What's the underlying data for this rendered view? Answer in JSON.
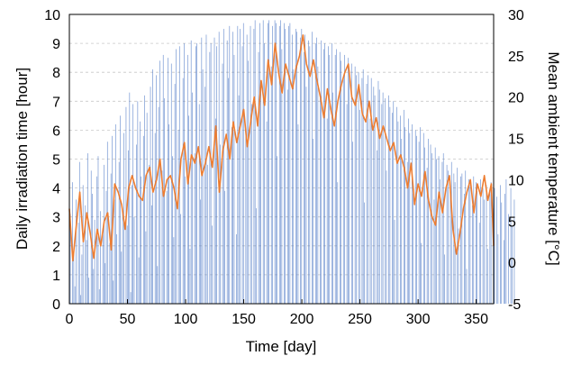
{
  "chart_data": {
    "type": "bar+line",
    "xlabel": "Time [day]",
    "ylabel_left": "Daily irradiation time [hour]",
    "ylabel_right": "Mean ambient temperature [°C]",
    "xlim": [
      0,
      365
    ],
    "ylim_left": [
      0,
      10
    ],
    "ylim_right": [
      -5,
      30
    ],
    "x_ticks": [
      0,
      50,
      100,
      150,
      200,
      250,
      300,
      350
    ],
    "y_left_ticks": [
      0,
      1,
      2,
      3,
      4,
      5,
      6,
      7,
      8,
      9,
      10
    ],
    "y_right_ticks": [
      -5,
      0,
      5,
      10,
      15,
      20,
      25,
      30
    ],
    "grid": "horizontal dashed",
    "series": [
      {
        "axis": "left",
        "kind": "bar",
        "color": "#4472c4",
        "values": [
          3.1,
          0.0,
          4.2,
          1.9,
          0.6,
          3.6,
          0.0,
          2.8,
          4.9,
          0.3,
          1.7,
          4.1,
          0.0,
          3.4,
          2.2,
          5.2,
          0.9,
          0.0,
          4.6,
          3.8,
          1.2,
          2.9,
          0.0,
          4.4,
          5.1,
          0.5,
          3.2,
          0.0,
          2.6,
          4.8,
          1.4,
          3.9,
          5.6,
          0.0,
          2.1,
          4.5,
          5.8,
          0.8,
          3.6,
          6.2,
          2.4,
          0.0,
          4.9,
          6.5,
          1.8,
          3.3,
          5.9,
          0.0,
          6.8,
          2.7,
          5.3,
          7.3,
          0.4,
          4.1,
          6.9,
          3.0,
          0.0,
          5.5,
          7.0,
          1.6,
          6.3,
          4.4,
          0.0,
          5.8,
          7.2,
          2.5,
          6.6,
          0.0,
          4.8,
          7.5,
          3.4,
          8.1,
          0.0,
          5.9,
          7.9,
          1.3,
          6.8,
          8.4,
          0.0,
          4.6,
          8.6,
          7.1,
          0.0,
          3.9,
          8.5,
          6.2,
          0.0,
          8.3,
          5.1,
          2.3,
          7.6,
          8.8,
          0.0,
          6.0,
          8.9,
          3.1,
          0.0,
          7.8,
          9.0,
          4.4,
          0.0,
          8.6,
          6.5,
          1.9,
          9.1,
          7.3,
          0.0,
          5.2,
          8.9,
          9.0,
          0.0,
          6.9,
          3.6,
          9.2,
          8.1,
          0.0,
          7.5,
          9.3,
          4.8,
          0.0,
          8.7,
          9.0,
          2.7,
          0.0,
          9.2,
          6.4,
          8.9,
          0.0,
          9.4,
          5.5,
          0.0,
          8.3,
          9.5,
          3.9,
          0.0,
          9.1,
          7.8,
          9.6,
          0.0,
          6.1,
          9.4,
          8.6,
          0.0,
          2.4,
          9.6,
          7.2,
          9.5,
          0.0,
          8.9,
          9.7,
          0.0,
          5.8,
          9.3,
          8.4,
          0.0,
          9.6,
          6.9,
          0.0,
          9.5,
          9.8,
          3.3,
          0.0,
          8.7,
          9.7,
          7.6,
          0.0,
          9.8,
          9.0,
          0.0,
          6.3,
          9.7,
          9.8,
          0.0,
          8.2,
          9.6,
          0.0,
          9.8,
          9.7,
          5.1,
          0.0,
          9.6,
          9.8,
          8.8,
          0.0,
          9.7,
          9.5,
          0.0,
          7.4,
          9.6,
          9.7,
          0.0,
          9.3,
          8.1,
          0.0,
          9.5,
          9.4,
          6.2,
          0.0,
          9.2,
          9.5,
          0.0,
          8.7,
          9.3,
          7.5,
          0.0,
          9.1,
          8.9,
          0.0,
          9.4,
          5.7,
          0.0,
          9.0,
          9.2,
          8.2,
          0.0,
          7.1,
          9.1,
          0.0,
          8.8,
          9.0,
          0.0,
          6.4,
          8.9,
          8.6,
          0.0,
          9.0,
          7.3,
          0.0,
          8.6,
          8.8,
          4.2,
          0.0,
          8.7,
          8.4,
          0.0,
          7.8,
          8.6,
          0.0,
          6.9,
          8.5,
          8.1,
          0.0,
          8.3,
          5.6,
          0.0,
          8.2,
          7.9,
          0.0,
          8.0,
          6.7,
          0.0,
          7.8,
          8.1,
          3.5,
          0.0,
          7.6,
          7.9,
          0.0,
          6.4,
          7.8,
          0.0,
          7.5,
          7.2,
          0.0,
          5.3,
          7.7,
          7.4,
          0.0,
          6.9,
          7.3,
          0.0,
          7.1,
          4.6,
          0.0,
          7.2,
          6.8,
          0.0,
          6.6,
          7.0,
          2.9,
          0.0,
          6.8,
          6.3,
          0.0,
          6.5,
          5.7,
          0.0,
          6.7,
          6.1,
          0.0,
          4.9,
          6.4,
          5.9,
          0.0,
          6.2,
          3.8,
          0.0,
          6.0,
          5.8,
          0.0,
          5.6,
          6.1,
          2.1,
          0.0,
          5.9,
          5.4,
          0.0,
          4.7,
          5.7,
          0.0,
          5.5,
          5.2,
          0.0,
          3.6,
          5.4,
          5.0,
          0.0,
          5.1,
          4.3,
          0.0,
          4.9,
          5.2,
          1.7,
          0.0,
          4.8,
          4.6,
          0.0,
          3.9,
          4.9,
          0.0,
          4.5,
          4.2,
          0.0,
          4.7,
          2.6,
          0.0,
          4.4,
          4.5,
          0.0,
          3.8,
          4.6,
          1.2,
          0.0,
          4.3,
          4.1,
          0.0,
          3.4,
          4.4,
          0.0,
          4.2,
          3.9,
          0.0,
          2.8,
          4.3,
          0.0,
          4.0,
          3.6,
          0.0,
          4.1,
          1.9,
          0.0,
          3.9,
          4.2,
          0.0,
          3.3,
          4.0,
          0.0,
          3.7,
          2.4,
          0.0,
          4.1,
          3.5,
          0.0,
          2.2,
          3.8,
          4.3,
          0.0,
          3.1,
          0.0,
          4.0,
          2.7,
          0.0,
          3.6,
          0.0
        ]
      },
      {
        "axis": "right",
        "kind": "line",
        "color": "#ed7d31",
        "x": [
          0,
          3,
          6,
          9,
          12,
          15,
          18,
          21,
          24,
          27,
          30,
          33,
          36,
          39,
          42,
          45,
          48,
          51,
          54,
          57,
          60,
          63,
          66,
          69,
          72,
          75,
          78,
          81,
          84,
          87,
          90,
          93,
          96,
          99,
          102,
          105,
          108,
          111,
          114,
          117,
          120,
          123,
          126,
          129,
          132,
          135,
          138,
          141,
          144,
          147,
          150,
          153,
          156,
          159,
          162,
          165,
          168,
          171,
          174,
          177,
          180,
          183,
          186,
          189,
          192,
          195,
          198,
          201,
          204,
          207,
          210,
          213,
          216,
          219,
          222,
          225,
          228,
          231,
          234,
          237,
          240,
          243,
          246,
          249,
          252,
          255,
          258,
          261,
          264,
          267,
          270,
          273,
          276,
          279,
          282,
          285,
          288,
          291,
          294,
          297,
          300,
          303,
          306,
          309,
          312,
          315,
          318,
          321,
          324,
          327,
          330,
          333,
          336,
          339,
          342,
          345,
          348,
          351,
          354,
          357,
          360,
          363,
          365
        ],
        "values": [
          6.5,
          0.2,
          4.5,
          8.5,
          2.5,
          6.0,
          3.5,
          0.5,
          4.0,
          2.0,
          5.0,
          6.0,
          1.5,
          9.5,
          8.5,
          7.0,
          4.0,
          9.0,
          10.5,
          9.0,
          8.0,
          7.5,
          10.5,
          11.5,
          8.5,
          10.0,
          12.5,
          8.0,
          10.0,
          10.5,
          9.0,
          6.5,
          12.5,
          14.5,
          9.5,
          13.0,
          12.0,
          14.0,
          10.5,
          12.0,
          14.0,
          11.5,
          16.5,
          8.5,
          13.5,
          15.5,
          12.5,
          17.0,
          14.5,
          16.5,
          18.5,
          14.0,
          17.0,
          20.0,
          16.5,
          22.0,
          19.0,
          24.5,
          21.5,
          26.5,
          23.0,
          20.5,
          24.0,
          22.5,
          21.0,
          23.5,
          25.0,
          27.5,
          24.0,
          22.5,
          24.5,
          22.0,
          20.0,
          17.5,
          21.0,
          18.5,
          16.5,
          19.5,
          21.5,
          23.0,
          24.0,
          20.0,
          19.0,
          21.5,
          18.0,
          17.0,
          19.5,
          16.0,
          17.5,
          15.0,
          16.5,
          15.0,
          13.5,
          14.5,
          12.0,
          13.0,
          11.5,
          9.0,
          12.0,
          7.0,
          9.5,
          8.0,
          11.0,
          7.5,
          5.5,
          4.5,
          8.5,
          6.0,
          9.0,
          10.5,
          4.0,
          1.0,
          3.5,
          6.5,
          8.5,
          10.0,
          6.0,
          9.5,
          8.0,
          10.5,
          7.5,
          9.5,
          2.0
        ]
      }
    ]
  }
}
